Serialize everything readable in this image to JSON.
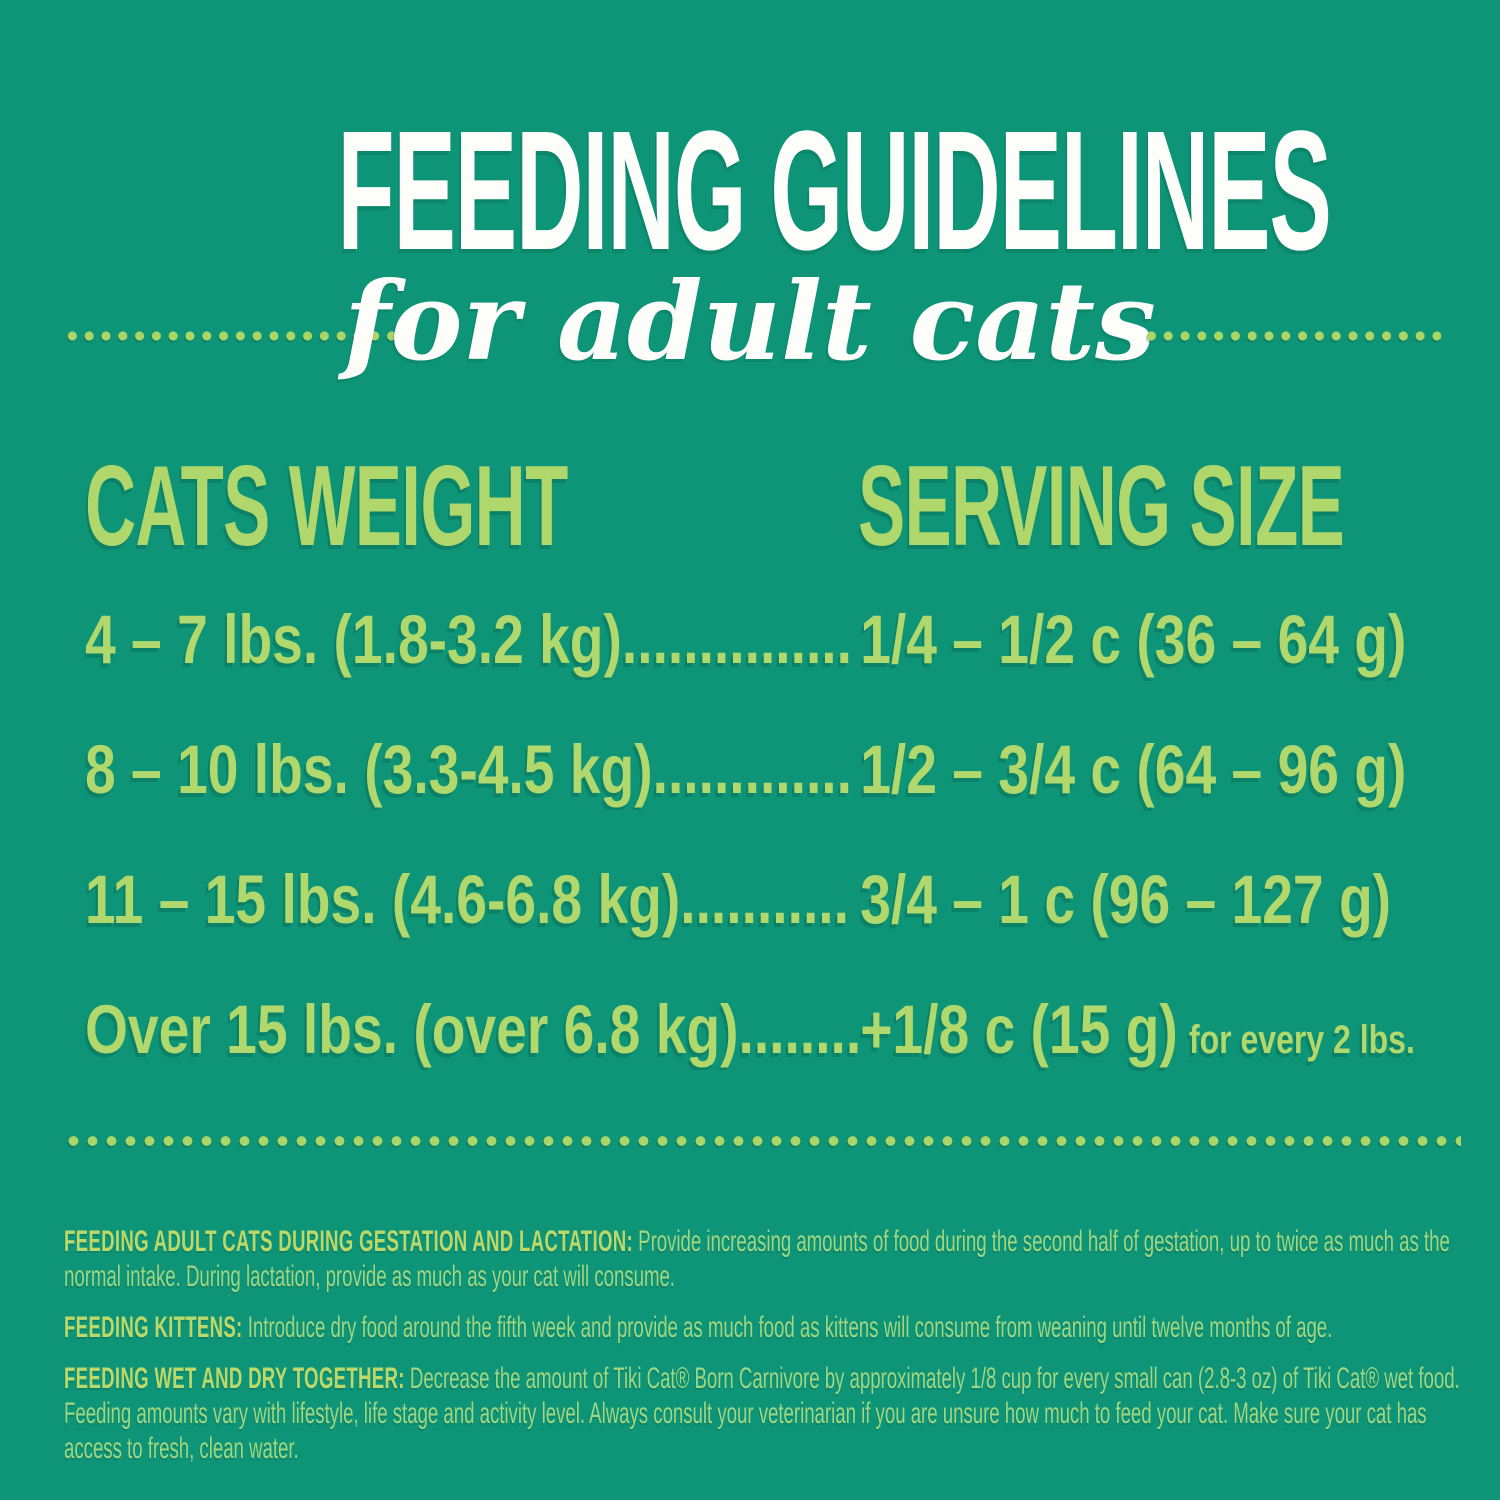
{
  "colors": {
    "background": "#0E9577",
    "title_white": "#FDFDFA",
    "accent_green": "#B1D86C",
    "dot_green": "#A9D666",
    "footnote_green": "#9FD783"
  },
  "header": {
    "title": "FEEDING GUIDELINES",
    "subtitle": "for adult cats"
  },
  "table": {
    "headers": {
      "weight": "CATS WEIGHT",
      "serving": "SERVING SIZE"
    },
    "rows": [
      {
        "weight": "4 – 7 lbs. (1.8-3.2 kg)",
        "dots": "...............",
        "serving": "1/4 – 1/2 c (36 – 64 g)",
        "note": ""
      },
      {
        "weight": "8 – 10 lbs. (3.3-4.5 kg)",
        "dots": ".............",
        "serving": "1/2 – 3/4 c (64 – 96 g)",
        "note": ""
      },
      {
        "weight": "11 – 15 lbs. (4.6-6.8 kg)",
        "dots": "...........",
        "serving": "3/4 – 1 c (96 – 127 g)",
        "note": ""
      },
      {
        "weight": "Over 15 lbs. (over 6.8 kg)",
        "dots": "..........",
        "serving": "+1/8 c (15 g)",
        "note": "for every 2 lbs."
      }
    ]
  },
  "footnotes": [
    {
      "label": "FEEDING ADULT CATS DURING GESTATION AND LACTATION:",
      "text": "Provide increasing amounts of food during the second half of gestation, up to twice as much as the normal intake.  During lactation, provide as much as your cat will consume."
    },
    {
      "label": "FEEDING KITTENS:",
      "text": "Introduce dry food around the fifth week and provide as much food as kittens will consume from weaning until twelve months of age."
    },
    {
      "label": "FEEDING WET AND DRY TOGETHER:",
      "text": "Decrease the amount of Tiki Cat® Born Carnivore by approximately 1/8 cup for every small can (2.8-3 oz) of Tiki Cat® wet food. Feeding amounts vary with lifestyle, life stage and activity level.  Always consult your veterinarian if you are unsure how much to feed your cat. Make sure your cat has access to fresh, clean water."
    }
  ]
}
